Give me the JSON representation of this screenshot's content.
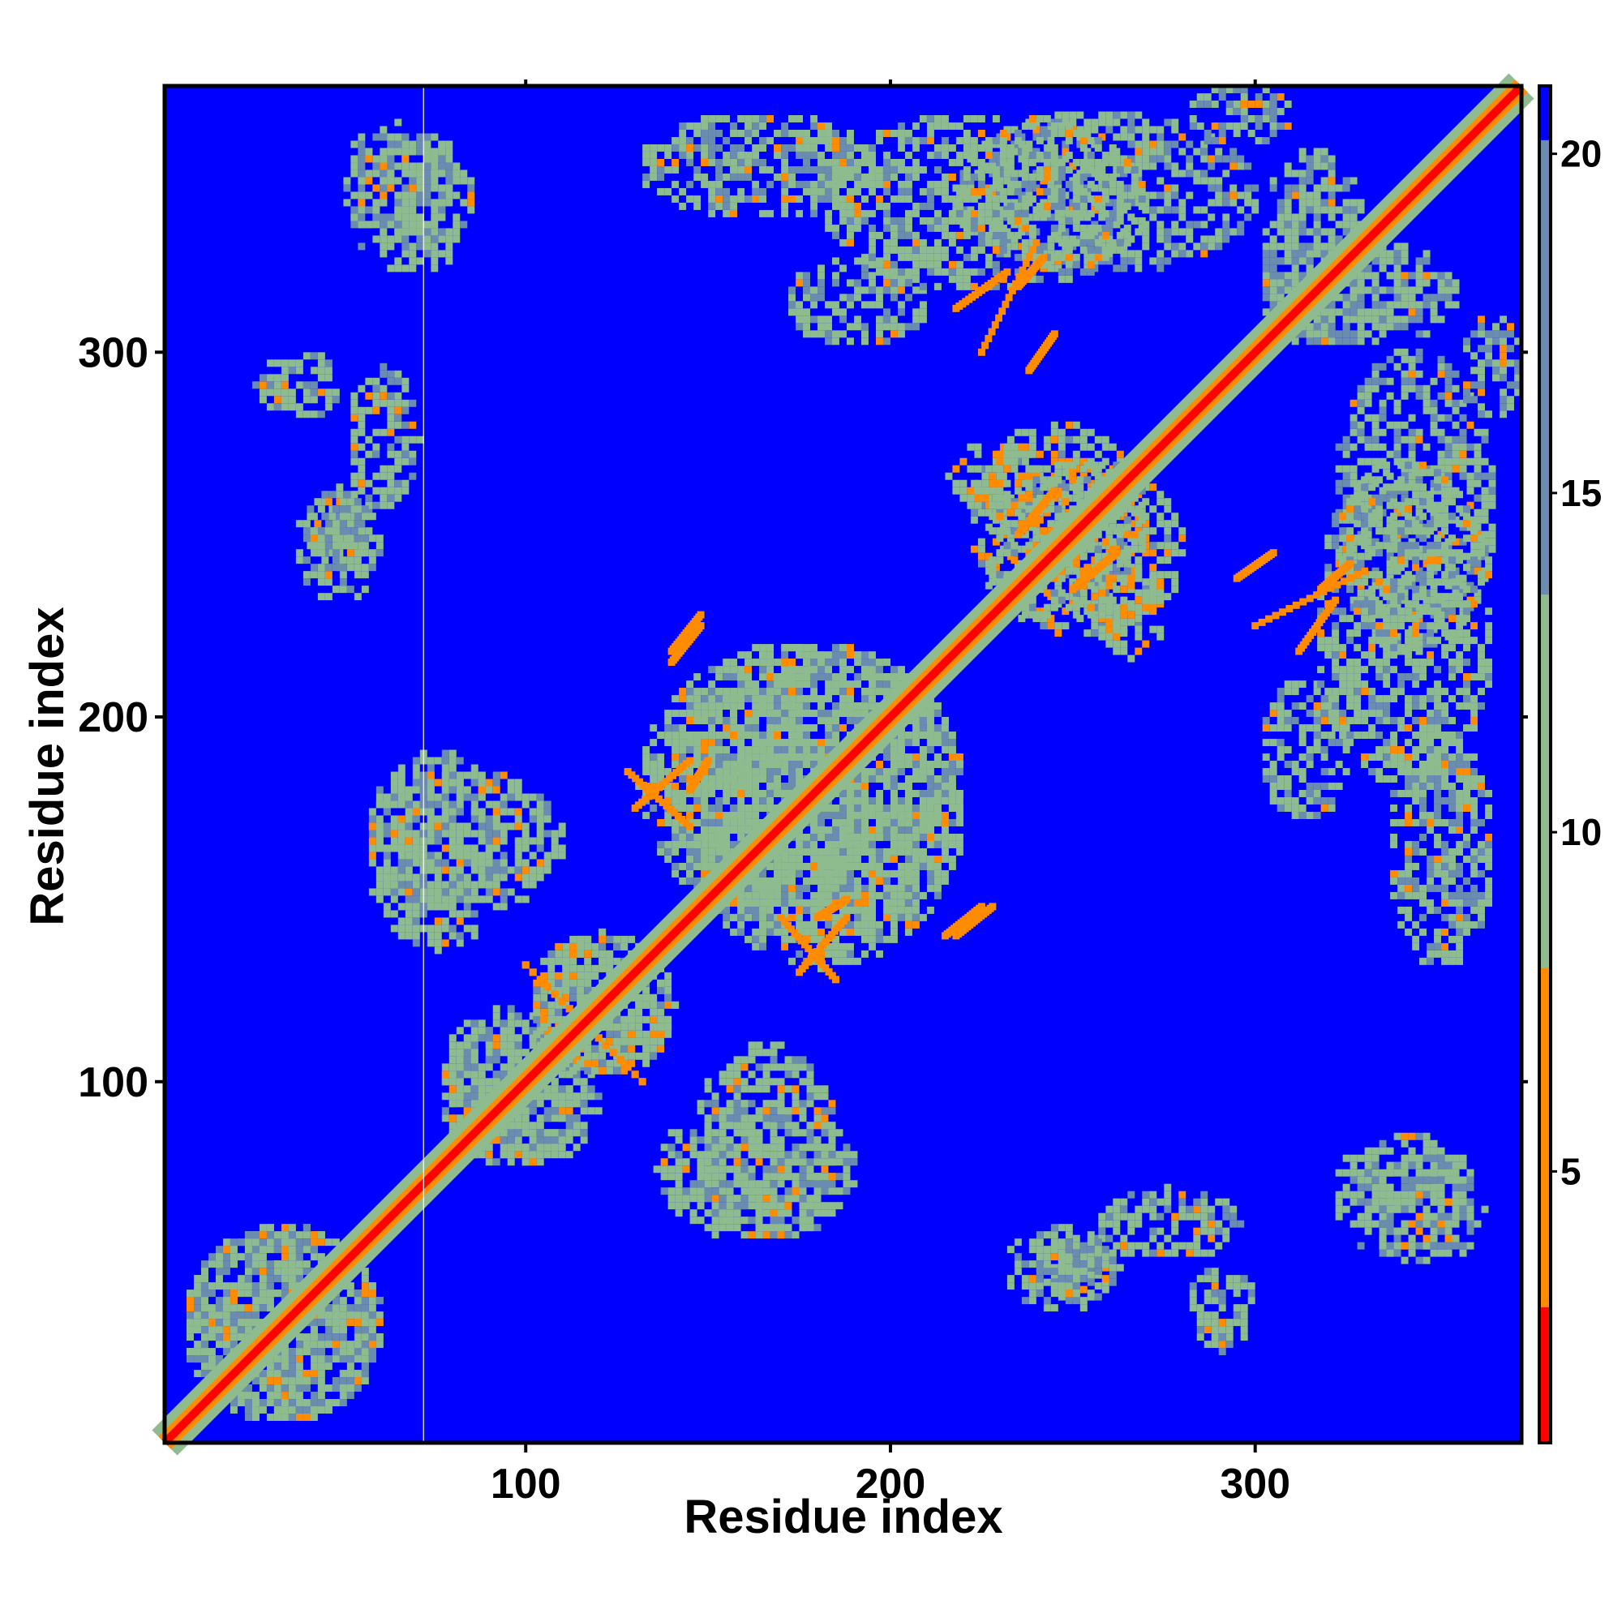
{
  "chart_data": {
    "type": "heatmap",
    "title": "",
    "xlabel": "Residue index",
    "ylabel": "Residue index",
    "xlim": [
      1,
      373
    ],
    "ylim": [
      1,
      373
    ],
    "x_ticks": [
      100,
      200,
      300
    ],
    "y_ticks": [
      100,
      200,
      300
    ],
    "symmetric": true,
    "cell_values": "pairwise residue distance, clipped at 21 (values >= 21 shown as background)",
    "colorbar": {
      "ticks": [
        5,
        10,
        15,
        20
      ],
      "range": [
        1,
        21
      ],
      "colors": {
        "low": "#ff0000",
        "mid_low": "#ff8c00",
        "mid": "#8fbc8f",
        "mid_high": "#6a8caf",
        "background": "#0000ff"
      }
    },
    "contact_blocks": [
      {
        "x": [
          5,
          60
        ],
        "y": [
          5,
          60
        ],
        "level": 12
      },
      {
        "x": [
          48,
          80
        ],
        "y": [
          330,
          362
        ],
        "level": 11
      },
      {
        "x": [
          25,
          48
        ],
        "y": [
          280,
          300
        ],
        "level": 11
      },
      {
        "x": [
          38,
          58
        ],
        "y": [
          240,
          262
        ],
        "level": 11
      },
      {
        "x": [
          55,
          110
        ],
        "y": [
          145,
          185
        ],
        "level": 11
      },
      {
        "x": [
          75,
          120
        ],
        "y": [
          75,
          115
        ],
        "level": 11
      },
      {
        "x": [
          135,
          190
        ],
        "y": [
          55,
          95
        ],
        "level": 11
      },
      {
        "x": [
          130,
          195
        ],
        "y": [
          335,
          365
        ],
        "level": 12
      },
      {
        "x": [
          170,
          210
        ],
        "y": [
          300,
          325
        ],
        "level": 12
      },
      {
        "x": [
          215,
          300
        ],
        "y": [
          320,
          365
        ],
        "level": 12
      },
      {
        "x": [
          220,
          270
        ],
        "y": [
          225,
          280
        ],
        "level": 10
      },
      {
        "x": [
          255,
          295
        ],
        "y": [
          50,
          70
        ],
        "level": 11
      },
      {
        "x": [
          230,
          260
        ],
        "y": [
          35,
          60
        ],
        "level": 12
      },
      {
        "x": [
          300,
          355
        ],
        "y": [
          300,
          330
        ],
        "level": 12
      },
      {
        "x": [
          315,
          365
        ],
        "y": [
          180,
          270
        ],
        "level": 11
      },
      {
        "x": [
          320,
          360
        ],
        "y": [
          50,
          85
        ],
        "level": 11
      },
      {
        "x": [
          355,
          373
        ],
        "y": [
          280,
          310
        ],
        "level": 12
      },
      {
        "x": [
          140,
          220
        ],
        "y": [
          130,
          220
        ],
        "level": 11
      },
      {
        "x": [
          100,
          140
        ],
        "y": [
          100,
          140
        ],
        "level": 10
      },
      {
        "x": [
          255,
          275
        ],
        "y": [
          215,
          240
        ],
        "level": 9
      }
    ],
    "secondary_diagonals": [
      {
        "x": [
          100,
          132
        ],
        "y": [
          132,
          100
        ]
      },
      {
        "x": [
          128,
          145
        ],
        "y": [
          185,
          170
        ]
      },
      {
        "x": [
          145,
          150
        ],
        "y": [
          180,
          188
        ]
      },
      {
        "x": [
          175,
          188
        ],
        "y": [
          130,
          145
        ]
      },
      {
        "x": [
          215,
          225
        ],
        "y": [
          140,
          148
        ]
      },
      {
        "x": [
          140,
          148
        ],
        "y": [
          218,
          228
        ]
      },
      {
        "x": [
          218,
          232
        ],
        "y": [
          312,
          322
        ]
      },
      {
        "x": [
          235,
          242
        ],
        "y": [
          318,
          326
        ]
      },
      {
        "x": [
          238,
          245
        ],
        "y": [
          295,
          305
        ]
      },
      {
        "x": [
          300,
          330
        ],
        "y": [
          225,
          240
        ]
      },
      {
        "x": [
          250,
          262
        ],
        "y": [
          235,
          245
        ]
      }
    ]
  }
}
